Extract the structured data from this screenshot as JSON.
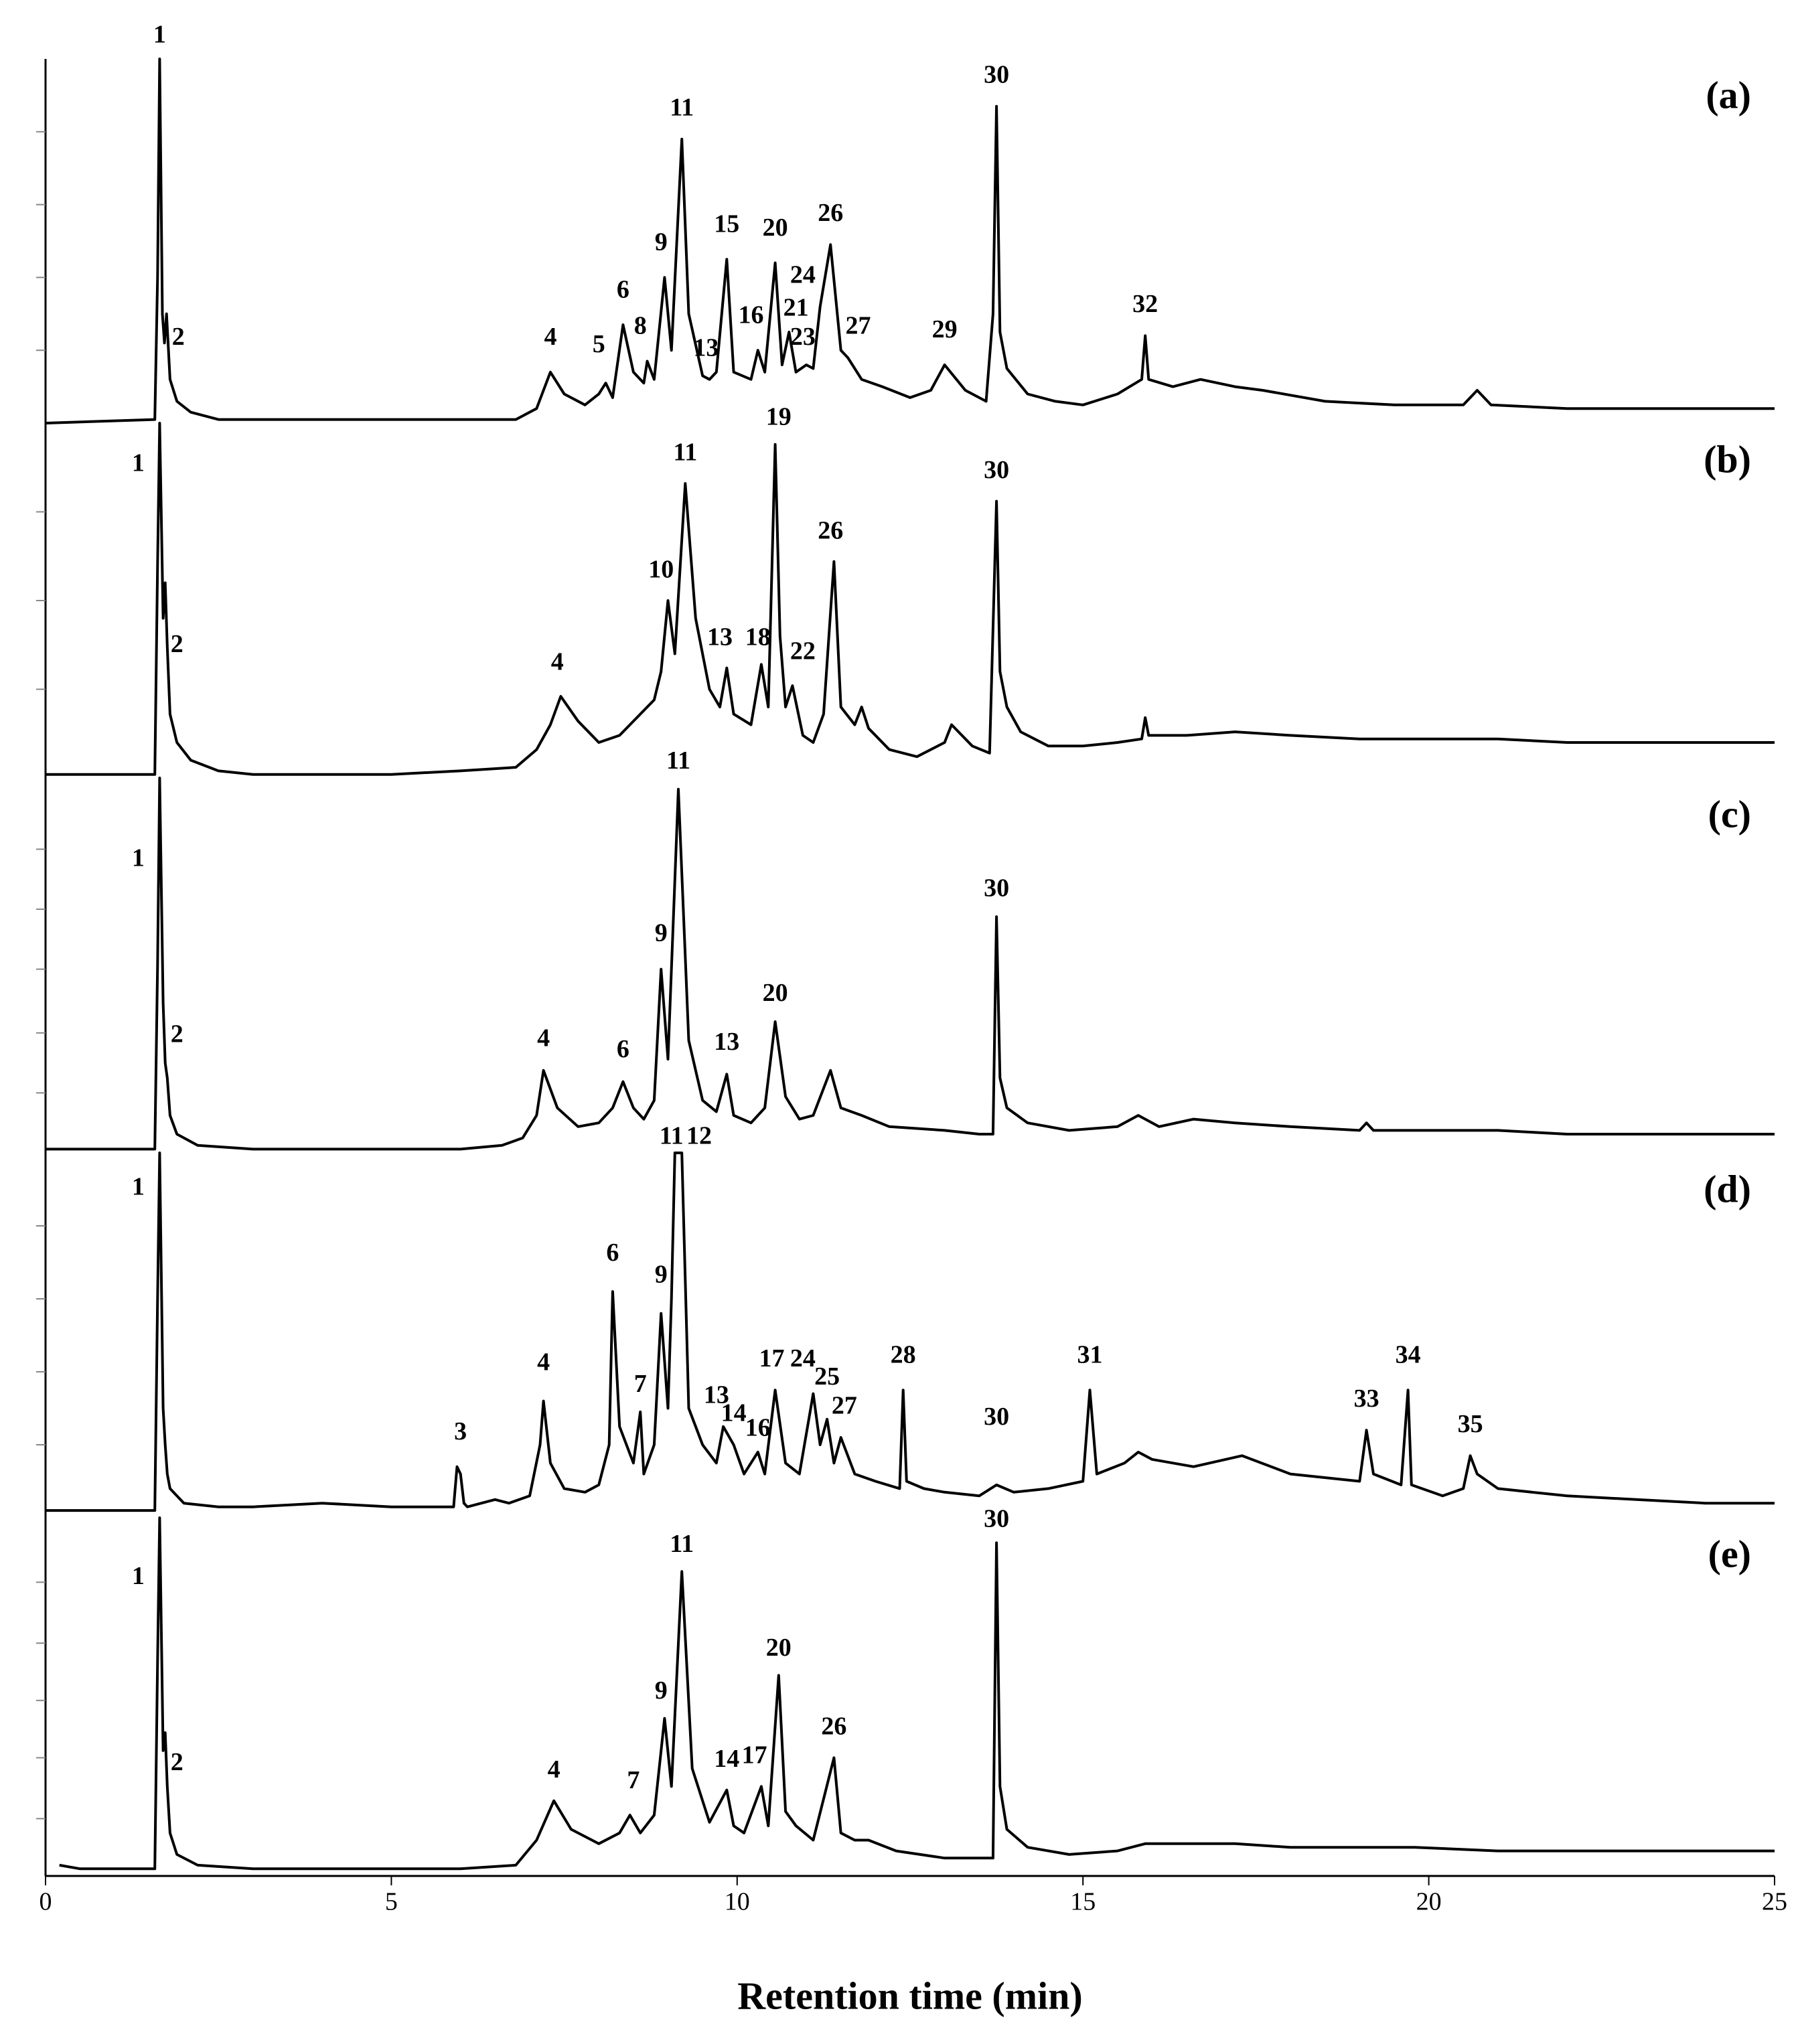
{
  "chart_data": [
    {
      "type": "line",
      "title": "(a)",
      "color": "#000000",
      "xlim": [
        0,
        25
      ],
      "ylim": [
        0,
        100
      ],
      "yticks": [
        20,
        40,
        60,
        80
      ],
      "x": [
        0,
        1.58,
        1.62,
        1.65,
        1.69,
        1.72,
        1.75,
        1.8,
        1.9,
        2.1,
        2.5,
        3,
        4,
        5,
        6,
        6.8,
        7.1,
        7.3,
        7.5,
        7.8,
        8.0,
        8.1,
        8.2,
        8.35,
        8.5,
        8.65,
        8.7,
        8.8,
        8.95,
        9.05,
        9.2,
        9.3,
        9.5,
        9.6,
        9.7,
        9.85,
        9.95,
        10.2,
        10.3,
        10.4,
        10.55,
        10.65,
        10.75,
        10.85,
        11.0,
        11.1,
        11.2,
        11.35,
        11.5,
        11.6,
        11.8,
        12.1,
        12.5,
        12.8,
        13.0,
        13.3,
        13.6,
        13.7,
        13.75,
        13.8,
        13.9,
        14.2,
        14.6,
        15.0,
        15.5,
        15.85,
        15.9,
        15.95,
        16.3,
        16.7,
        17.2,
        17.6,
        18.5,
        19.5,
        20.5,
        20.7,
        20.9,
        22,
        23.5,
        25
      ],
      "values": [
        0,
        1,
        40,
        100,
        30,
        22,
        30,
        12,
        6,
        3,
        1,
        1,
        1,
        1,
        1,
        1,
        4,
        14,
        8,
        5,
        8,
        11,
        7,
        27,
        14,
        11,
        17,
        12,
        40,
        20,
        78,
        30,
        13,
        12,
        14,
        45,
        14,
        12,
        20,
        14,
        44,
        16,
        25,
        14,
        16,
        15,
        32,
        49,
        20,
        18,
        12,
        10,
        7,
        9,
        16,
        9,
        6,
        30,
        87,
        25,
        15,
        8,
        6,
        5,
        8,
        12,
        24,
        12,
        10,
        12,
        10,
        9,
        6,
        5,
        5,
        9,
        5,
        4,
        4,
        4
      ],
      "annotations": [
        {
          "text": "1",
          "x": 1.65,
          "y": 105
        },
        {
          "text": "2",
          "x": 1.92,
          "y": 22
        },
        {
          "text": "4",
          "x": 7.3,
          "y": 22
        },
        {
          "text": "5",
          "x": 8.0,
          "y": 20
        },
        {
          "text": "6",
          "x": 8.35,
          "y": 35
        },
        {
          "text": "8",
          "x": 8.6,
          "y": 25
        },
        {
          "text": "9",
          "x": 8.9,
          "y": 48
        },
        {
          "text": "11",
          "x": 9.2,
          "y": 85
        },
        {
          "text": "13",
          "x": 9.55,
          "y": 19
        },
        {
          "text": "15",
          "x": 9.85,
          "y": 53
        },
        {
          "text": "16",
          "x": 10.2,
          "y": 28
        },
        {
          "text": "20",
          "x": 10.55,
          "y": 52
        },
        {
          "text": "24",
          "x": 10.95,
          "y": 39
        },
        {
          "text": "21",
          "x": 10.85,
          "y": 30
        },
        {
          "text": "23",
          "x": 10.95,
          "y": 22
        },
        {
          "text": "26",
          "x": 11.35,
          "y": 56
        },
        {
          "text": "27",
          "x": 11.75,
          "y": 25
        },
        {
          "text": "29",
          "x": 13.0,
          "y": 24
        },
        {
          "text": "30",
          "x": 13.75,
          "y": 94
        },
        {
          "text": "32",
          "x": 15.9,
          "y": 31
        }
      ]
    },
    {
      "type": "line",
      "title": "(b)",
      "color": "#000000",
      "xlim": [
        0,
        25
      ],
      "ylim": [
        0,
        100
      ],
      "yticks": [
        25,
        50,
        75
      ],
      "x": [
        0,
        0.5,
        1.0,
        1.58,
        1.62,
        1.65,
        1.7,
        1.73,
        1.76,
        1.8,
        1.9,
        2.1,
        2.5,
        3,
        4,
        5,
        6,
        6.8,
        7.1,
        7.3,
        7.45,
        7.7,
        8.0,
        8.3,
        8.6,
        8.8,
        8.9,
        9.0,
        9.1,
        9.25,
        9.4,
        9.6,
        9.75,
        9.85,
        9.95,
        10.2,
        10.35,
        10.45,
        10.55,
        10.62,
        10.7,
        10.8,
        10.95,
        11.1,
        11.25,
        11.4,
        11.5,
        11.7,
        11.8,
        11.9,
        12.2,
        12.6,
        13.0,
        13.1,
        13.4,
        13.65,
        13.75,
        13.8,
        13.9,
        14.1,
        14.5,
        15.0,
        15.5,
        15.85,
        15.9,
        15.95,
        16.5,
        17.2,
        18,
        19,
        20,
        21,
        22,
        23,
        24,
        25
      ],
      "values": [
        1,
        1,
        1,
        1,
        60,
        100,
        45,
        55,
        37,
        18,
        10,
        5,
        2,
        1,
        1,
        1,
        2,
        3,
        8,
        15,
        23,
        16,
        10,
        12,
        18,
        22,
        30,
        50,
        35,
        83,
        45,
        25,
        20,
        31,
        18,
        15,
        32,
        20,
        94,
        40,
        20,
        26,
        12,
        10,
        18,
        61,
        20,
        15,
        20,
        14,
        8,
        6,
        10,
        15,
        9,
        7,
        78,
        30,
        20,
        13,
        9,
        9,
        10,
        11,
        17,
        12,
        12,
        13,
        12,
        11,
        11,
        11,
        10,
        10,
        10,
        10
      ],
      "annotations": [
        {
          "text": "1",
          "x": 1.34,
          "y": 87
        },
        {
          "text": "2",
          "x": 1.9,
          "y": 36
        },
        {
          "text": "4",
          "x": 7.4,
          "y": 31
        },
        {
          "text": "10",
          "x": 8.9,
          "y": 57
        },
        {
          "text": "11",
          "x": 9.25,
          "y": 90
        },
        {
          "text": "13",
          "x": 9.75,
          "y": 38
        },
        {
          "text": "18",
          "x": 10.3,
          "y": 38
        },
        {
          "text": "19",
          "x": 10.6,
          "y": 100
        },
        {
          "text": "22",
          "x": 10.95,
          "y": 34
        },
        {
          "text": "26",
          "x": 11.35,
          "y": 68
        },
        {
          "text": "30",
          "x": 13.75,
          "y": 85
        }
      ]
    },
    {
      "type": "line",
      "title": "(c)",
      "color": "#000000",
      "xlim": [
        0,
        25
      ],
      "ylim": [
        0,
        100
      ],
      "yticks": [
        16,
        32,
        49,
        65,
        81
      ],
      "x": [
        0,
        1.0,
        1.58,
        1.62,
        1.65,
        1.7,
        1.73,
        1.76,
        1.8,
        1.9,
        2.2,
        3,
        4,
        5,
        6,
        6.6,
        6.9,
        7.1,
        7.2,
        7.4,
        7.7,
        8.0,
        8.2,
        8.35,
        8.5,
        8.65,
        8.8,
        8.9,
        9.0,
        9.15,
        9.3,
        9.5,
        9.7,
        9.85,
        9.95,
        10.2,
        10.3,
        10.4,
        10.55,
        10.7,
        10.9,
        11.1,
        11.35,
        11.5,
        11.8,
        12.2,
        13,
        13.5,
        13.7,
        13.75,
        13.8,
        13.9,
        14.2,
        14.8,
        15.5,
        15.8,
        16.1,
        16.6,
        17.2,
        18,
        19,
        19.1,
        19.2,
        20,
        21,
        22,
        23,
        25
      ],
      "values": [
        1,
        1,
        1,
        50,
        100,
        40,
        24,
        20,
        10,
        5,
        2,
        1,
        1,
        1,
        1,
        2,
        4,
        10,
        22,
        12,
        7,
        8,
        12,
        19,
        12,
        9,
        14,
        49,
        25,
        97,
        30,
        14,
        11,
        21,
        10,
        8,
        10,
        12,
        35,
        15,
        9,
        10,
        22,
        12,
        10,
        7,
        6,
        5,
        5,
        63,
        20,
        12,
        8,
        6,
        7,
        10,
        7,
        9,
        8,
        7,
        6,
        8,
        6,
        6,
        6,
        5,
        5,
        5
      ],
      "annotations": [
        {
          "text": "1",
          "x": 1.34,
          "y": 77
        },
        {
          "text": "2",
          "x": 1.9,
          "y": 30
        },
        {
          "text": "4",
          "x": 7.2,
          "y": 29
        },
        {
          "text": "6",
          "x": 8.35,
          "y": 26
        },
        {
          "text": "9",
          "x": 8.9,
          "y": 57
        },
        {
          "text": "11",
          "x": 9.15,
          "y": 103
        },
        {
          "text": "13",
          "x": 9.85,
          "y": 28
        },
        {
          "text": "20",
          "x": 10.55,
          "y": 41
        },
        {
          "text": "30",
          "x": 13.75,
          "y": 69
        }
      ]
    },
    {
      "type": "line",
      "title": "(d)",
      "color": "#000000",
      "xlim": [
        0,
        25
      ],
      "ylim": [
        0,
        100
      ],
      "yticks": [
        20,
        40,
        60,
        80
      ],
      "x": [
        0,
        0.5,
        1.0,
        1.58,
        1.62,
        1.65,
        1.7,
        1.73,
        1.76,
        1.8,
        2.0,
        2.5,
        3,
        4,
        5,
        5.9,
        5.95,
        6.0,
        6.05,
        6.1,
        6.5,
        6.7,
        7.0,
        7.15,
        7.2,
        7.3,
        7.5,
        7.8,
        8.0,
        8.15,
        8.2,
        8.3,
        8.5,
        8.6,
        8.65,
        8.8,
        8.9,
        9.0,
        9.05,
        9.1,
        9.15,
        9.2,
        9.3,
        9.5,
        9.7,
        9.8,
        9.95,
        10.1,
        10.3,
        10.4,
        10.55,
        10.7,
        10.9,
        11.1,
        11.2,
        11.3,
        11.4,
        11.5,
        11.7,
        12.0,
        12.35,
        12.4,
        12.45,
        12.7,
        13,
        13.5,
        13.75,
        14,
        14.5,
        15.0,
        15.1,
        15.2,
        15.6,
        15.8,
        16,
        16.6,
        17.3,
        18,
        19.0,
        19.1,
        19.2,
        19.6,
        19.7,
        19.75,
        20.2,
        20.5,
        20.6,
        20.7,
        21,
        22,
        23,
        24,
        25
      ],
      "values": [
        2,
        2,
        2,
        2,
        60,
        100,
        30,
        20,
        12,
        8,
        4,
        3,
        3,
        4,
        3,
        3,
        14,
        12,
        4,
        3,
        5,
        4,
        6,
        20,
        32,
        15,
        8,
        7,
        9,
        20,
        62,
        25,
        15,
        29,
        12,
        20,
        56,
        30,
        60,
        100,
        100,
        100,
        30,
        20,
        15,
        25,
        20,
        12,
        18,
        12,
        35,
        15,
        12,
        34,
        20,
        27,
        15,
        22,
        12,
        10,
        8,
        35,
        10,
        8,
        7,
        6,
        9,
        7,
        8,
        10,
        35,
        12,
        15,
        18,
        16,
        14,
        17,
        12,
        10,
        24,
        12,
        9,
        35,
        9,
        6,
        8,
        17,
        12,
        8,
        6,
        5,
        4,
        4
      ],
      "annotations": [
        {
          "text": "1",
          "x": 1.34,
          "y": 89
        },
        {
          "text": "3",
          "x": 6.0,
          "y": 22
        },
        {
          "text": "4",
          "x": 7.2,
          "y": 41
        },
        {
          "text": "6",
          "x": 8.2,
          "y": 71
        },
        {
          "text": "7",
          "x": 8.6,
          "y": 35
        },
        {
          "text": "9",
          "x": 8.9,
          "y": 65
        },
        {
          "text": "11",
          "x": 9.05,
          "y": 103
        },
        {
          "text": "12",
          "x": 9.45,
          "y": 103
        },
        {
          "text": "13",
          "x": 9.7,
          "y": 32
        },
        {
          "text": "14",
          "x": 9.95,
          "y": 27
        },
        {
          "text": "16",
          "x": 10.3,
          "y": 23
        },
        {
          "text": "17",
          "x": 10.5,
          "y": 42
        },
        {
          "text": "24",
          "x": 10.95,
          "y": 42
        },
        {
          "text": "25",
          "x": 11.3,
          "y": 37
        },
        {
          "text": "27",
          "x": 11.55,
          "y": 29
        },
        {
          "text": "28",
          "x": 12.4,
          "y": 43
        },
        {
          "text": "30",
          "x": 13.75,
          "y": 26
        },
        {
          "text": "31",
          "x": 15.1,
          "y": 43
        },
        {
          "text": "33",
          "x": 19.1,
          "y": 31
        },
        {
          "text": "34",
          "x": 19.7,
          "y": 43
        },
        {
          "text": "35",
          "x": 20.6,
          "y": 24
        }
      ]
    },
    {
      "type": "line",
      "title": "(e)",
      "color": "#000000",
      "xlim": [
        0,
        25
      ],
      "ylim": [
        0,
        100
      ],
      "yticks": [
        16,
        33,
        49,
        65,
        82
      ],
      "xticks": [
        0,
        5,
        10,
        15,
        20,
        25
      ],
      "xlabel": "Retention time (min)",
      "x": [
        0.2,
        0.5,
        1.0,
        1.58,
        1.62,
        1.65,
        1.7,
        1.73,
        1.76,
        1.8,
        1.9,
        2.2,
        3,
        4,
        5,
        6,
        6.8,
        7.1,
        7.35,
        7.6,
        8.0,
        8.3,
        8.45,
        8.6,
        8.8,
        8.95,
        9.05,
        9.2,
        9.35,
        9.6,
        9.85,
        9.95,
        10.1,
        10.35,
        10.45,
        10.6,
        10.7,
        10.85,
        11.1,
        11.4,
        11.5,
        11.7,
        11.9,
        12.3,
        13,
        13.4,
        13.7,
        13.75,
        13.8,
        13.9,
        14.2,
        14.8,
        15.5,
        15.9,
        16.5,
        17.2,
        18,
        19,
        19.8,
        21,
        22,
        23,
        24,
        25
      ],
      "values": [
        3,
        2,
        2,
        2,
        60,
        100,
        35,
        40,
        25,
        12,
        6,
        3,
        2,
        2,
        2,
        2,
        3,
        10,
        21,
        13,
        9,
        12,
        17,
        12,
        17,
        44,
        25,
        85,
        30,
        15,
        24,
        14,
        12,
        25,
        14,
        56,
        18,
        14,
        10,
        33,
        12,
        10,
        10,
        7,
        5,
        5,
        5,
        93,
        25,
        13,
        8,
        6,
        7,
        9,
        9,
        9,
        8,
        8,
        8,
        7,
        7,
        7,
        7,
        7
      ],
      "annotations": [
        {
          "text": "1",
          "x": 1.34,
          "y": 82
        },
        {
          "text": "2",
          "x": 1.9,
          "y": 30
        },
        {
          "text": "4",
          "x": 7.35,
          "y": 28
        },
        {
          "text": "7",
          "x": 8.5,
          "y": 25
        },
        {
          "text": "9",
          "x": 8.9,
          "y": 50
        },
        {
          "text": "11",
          "x": 9.2,
          "y": 91
        },
        {
          "text": "14",
          "x": 9.85,
          "y": 31
        },
        {
          "text": "17",
          "x": 10.25,
          "y": 32
        },
        {
          "text": "20",
          "x": 10.6,
          "y": 62
        },
        {
          "text": "26",
          "x": 11.4,
          "y": 40
        },
        {
          "text": "30",
          "x": 13.75,
          "y": 98
        }
      ]
    }
  ]
}
